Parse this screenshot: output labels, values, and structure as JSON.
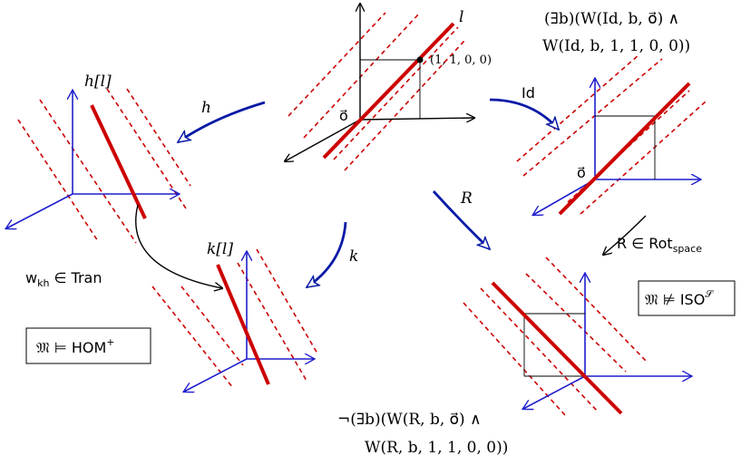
{
  "labels": {
    "l": "l",
    "h_l": "h[l]",
    "k_l": "k[l]",
    "h": "h",
    "k": "k",
    "id": "Id",
    "R": "R",
    "point": "(1, 1, 0, 0)",
    "origin": "o⃗",
    "origin_id": "o⃗",
    "exists_line1": "(∃b)(W(Id, b, o⃗) ∧",
    "exists_line2": "W(Id, b, 1, 1, 0, 0))",
    "not_exists_line1": "¬(∃b)(W(R, b, o⃗) ∧",
    "not_exists_line2": "W(R, b, 1, 1, 0, 0))",
    "w_tran": "w",
    "w_tran_sub": "kh",
    "w_tran_rest": " ∈ Tran",
    "R_rot": "R ∈ Rot",
    "R_rot_sub": "space",
    "box_hom": "𝔐 ⊨ HOM",
    "box_hom_sup": "+",
    "box_iso": "𝔐 ⊭ ISO",
    "box_iso_sup": "𝒮"
  },
  "colors": {
    "red_line": "#cc0000",
    "dashed": "#cc0000",
    "axes_blue": "#1f1fcc",
    "arrow_navy": "#0a1aa6",
    "axes_black": "#000000"
  }
}
